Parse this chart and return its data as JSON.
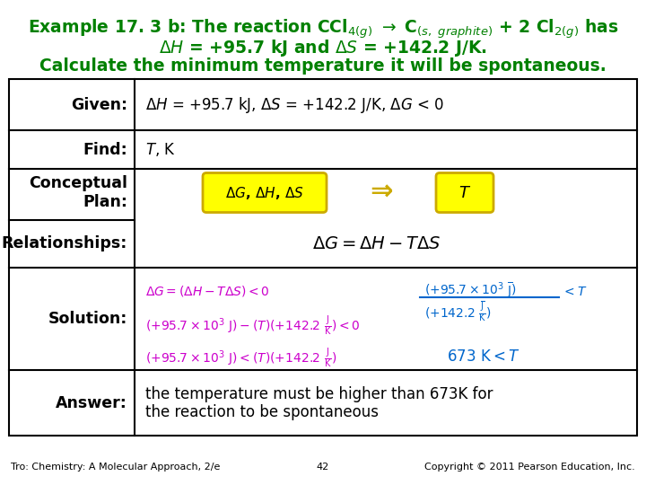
{
  "bg_color": "#ffffff",
  "title_color": "#008000",
  "table_border_color": "#000000",
  "label_color": "#000000",
  "solution_color_pink": "#cc00cc",
  "solution_color_blue": "#0066cc",
  "yellow_box_color": "#ffff00",
  "yellow_box_border": "#ccaa00",
  "footer_left": "Tro: Chemistry: A Molecular Approach, 2/e",
  "footer_center": "42",
  "footer_right": "Copyright © 2011 Pearson Education, Inc."
}
